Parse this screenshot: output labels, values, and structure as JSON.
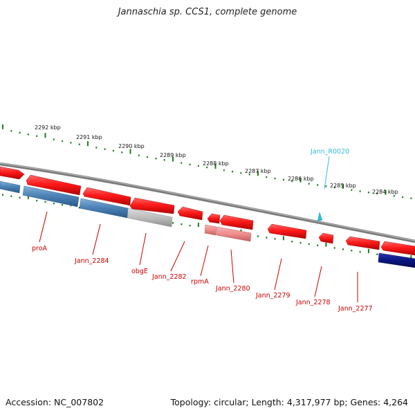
{
  "title": "Jannaschia sp. CCS1, complete genome",
  "accession": "Accession: NC_007802",
  "summary": "Topology: circular; Length: 4,317,977 bp; Genes: 4,264",
  "colors": {
    "backbone": "#858585",
    "tick": "#1e7a1e",
    "gene_forward": "#ff1a1a",
    "gene_reverse_blue": "#4d83b8",
    "gene_grey": "#bdbdbd",
    "gene_pink": "#f08c8c",
    "gene_navy": "#0a1580",
    "label_red": "#cc0000",
    "label_cyan": "#33bbdd"
  },
  "scale_ticks": [
    {
      "label": "2292 kbp",
      "kbp": 2292
    },
    {
      "label": "2291 kbp",
      "kbp": 2291
    },
    {
      "label": "2290 kbp",
      "kbp": 2290
    },
    {
      "label": "2289 kbp",
      "kbp": 2289
    },
    {
      "label": "2288 kbp",
      "kbp": 2288
    },
    {
      "label": "2287 kbp",
      "kbp": 2287
    },
    {
      "label": "2286 kbp",
      "kbp": 2286
    },
    {
      "label": "2285 kbp",
      "kbp": 2285
    },
    {
      "label": "2284 kbp",
      "kbp": 2284
    }
  ],
  "gene_labels": [
    {
      "name": "proA"
    },
    {
      "name": "Jann_2284"
    },
    {
      "name": "obgE"
    },
    {
      "name": "Jann_2282"
    },
    {
      "name": "rpmA"
    },
    {
      "name": "Jann_2280"
    },
    {
      "name": "Jann_2279"
    },
    {
      "name": "Jann_2278"
    },
    {
      "name": "Jann_2277"
    },
    {
      "name": "Jann_R0020"
    }
  ]
}
